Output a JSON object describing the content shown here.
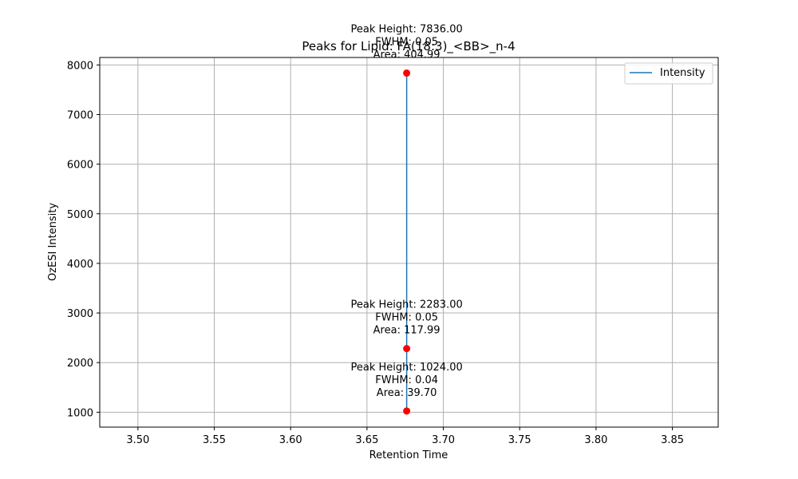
{
  "chart_data": {
    "type": "line",
    "title": "Peaks for Lipid: FA(18:3)_<BB>_n-4",
    "xlabel": "Retention Time",
    "ylabel": "OzESI Intensity",
    "xlim": [
      3.475,
      3.88
    ],
    "ylim": [
      700,
      8150
    ],
    "xticks": [
      3.5,
      3.55,
      3.6,
      3.65,
      3.7,
      3.75,
      3.8,
      3.85
    ],
    "xtick_labels": [
      "3.50",
      "3.55",
      "3.60",
      "3.65",
      "3.70",
      "3.75",
      "3.80",
      "3.85"
    ],
    "yticks": [
      1000,
      2000,
      3000,
      4000,
      5000,
      6000,
      7000,
      8000
    ],
    "ytick_labels": [
      "1000",
      "2000",
      "3000",
      "4000",
      "5000",
      "6000",
      "7000",
      "8000"
    ],
    "grid": true,
    "legend_position": "top-right",
    "series": [
      {
        "name": "Intensity",
        "color": "#1f77b4",
        "x": [
          3.676,
          3.676,
          3.676
        ],
        "y": [
          1024,
          2283,
          7836
        ]
      }
    ],
    "peaks": {
      "color": "#ff0000",
      "points": [
        {
          "x": 3.676,
          "y": 7836,
          "lines": [
            "Peak Height: 7836.00",
            "FWHM: 0.05",
            "Area: 404.99"
          ]
        },
        {
          "x": 3.676,
          "y": 2283,
          "lines": [
            "Peak Height: 2283.00",
            "FWHM: 0.05",
            "Area: 117.99"
          ]
        },
        {
          "x": 3.676,
          "y": 1024,
          "lines": [
            "Peak Height: 1024.00",
            "FWHM: 0.04",
            "Area: 39.70"
          ]
        }
      ]
    }
  }
}
